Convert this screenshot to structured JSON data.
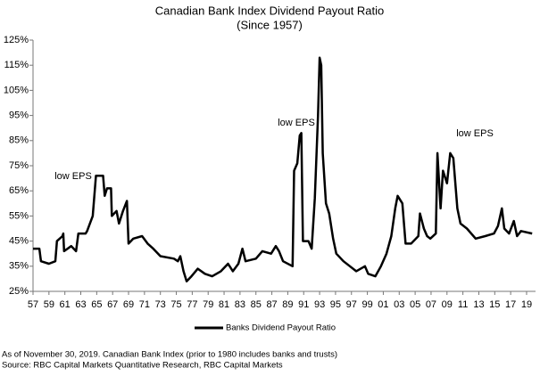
{
  "chart_data": {
    "type": "line",
    "title": "Canadian Bank Index Dividend Payout Ratio",
    "subtitle": "(Since 1957)",
    "annotations": [
      "low EPS",
      "low EPS",
      "low EPS"
    ],
    "footnotes": [
      "As of November 30, 2019. Canadian Bank Index (prior to 1980 includes banks and trusts)",
      "Source: RBC Capital Markets Quantitative Research, RBC Capital Markets"
    ],
    "x": [
      1957.0,
      1957.8,
      1958.0,
      1959.0,
      1959.8,
      1960.0,
      1960.7,
      1960.8,
      1960.9,
      1961.8,
      1962.4,
      1962.7,
      1963.6,
      1963.8,
      1964.5,
      1964.9,
      1965.8,
      1966.0,
      1966.3,
      1966.8,
      1966.9,
      1967.5,
      1967.8,
      1968.3,
      1968.8,
      1969.0,
      1969.6,
      1970.7,
      1971.4,
      1972.1,
      1973.0,
      1974.7,
      1975.2,
      1975.5,
      1975.9,
      1976.3,
      1976.9,
      1977.7,
      1978.6,
      1979.5,
      1980.6,
      1981.5,
      1982.1,
      1982.8,
      1983.3,
      1983.7,
      1985.0,
      1985.8,
      1986.9,
      1987.5,
      1987.9,
      1988.4,
      1989.6,
      1989.8,
      1990.2,
      1990.5,
      1990.7,
      1990.9,
      1991.6,
      1992.0,
      1992.4,
      1992.8,
      1993.0,
      1993.2,
      1993.4,
      1993.8,
      1994.2,
      1994.7,
      1995.1,
      1996.0,
      1996.8,
      1997.6,
      1998.7,
      1999.1,
      2000.0,
      2000.7,
      2001.4,
      2002.0,
      2002.5,
      2002.8,
      2003.4,
      2003.8,
      2004.5,
      2005.4,
      2005.6,
      2006.1,
      2006.5,
      2006.9,
      2007.6,
      2007.8,
      2008.2,
      2008.5,
      2009.0,
      2009.4,
      2009.8,
      2010.3,
      2010.7,
      2011.5,
      2012.6,
      2013.8,
      2014.9,
      2015.4,
      2015.9,
      2016.2,
      2016.8,
      2017.4,
      2017.8,
      2018.3,
      2019.7
    ],
    "series": [
      {
        "name": "Banks Dividend Payout Ratio",
        "color": "#000000",
        "values": [
          42,
          42,
          37,
          36,
          37,
          45,
          47,
          48,
          41,
          43,
          41,
          48,
          48,
          49,
          55,
          71,
          71,
          63,
          66,
          66,
          55,
          57,
          52,
          57,
          61,
          44,
          46,
          47,
          44,
          42,
          39,
          38,
          37,
          39,
          33,
          29,
          31,
          34,
          32,
          31,
          33,
          36,
          33,
          36,
          42,
          37,
          38,
          41,
          40,
          43,
          41,
          37,
          35,
          73,
          76,
          87,
          88,
          45,
          45,
          42,
          62,
          95,
          118,
          115,
          80,
          60,
          56,
          46,
          40,
          37,
          35,
          33,
          35,
          32,
          31,
          35,
          40,
          47,
          58,
          63,
          60,
          44,
          44,
          47,
          56,
          50,
          47,
          46,
          48,
          80,
          58,
          73,
          68,
          80,
          78,
          58,
          52,
          50,
          46,
          47,
          48,
          51,
          58,
          50,
          48,
          53,
          47,
          49,
          48
        ]
      }
    ],
    "xlim": [
      1957,
      2019.9
    ],
    "xticks": [
      {
        "value": 1957,
        "label": "57"
      },
      {
        "value": 1959,
        "label": "59"
      },
      {
        "value": 1961,
        "label": "61"
      },
      {
        "value": 1963,
        "label": "63"
      },
      {
        "value": 1965,
        "label": "65"
      },
      {
        "value": 1967,
        "label": "67"
      },
      {
        "value": 1969,
        "label": "69"
      },
      {
        "value": 1971,
        "label": "71"
      },
      {
        "value": 1973,
        "label": "73"
      },
      {
        "value": 1975,
        "label": "75"
      },
      {
        "value": 1977,
        "label": "77"
      },
      {
        "value": 1979,
        "label": "79"
      },
      {
        "value": 1981,
        "label": "81"
      },
      {
        "value": 1983,
        "label": "83"
      },
      {
        "value": 1985,
        "label": "85"
      },
      {
        "value": 1987,
        "label": "87"
      },
      {
        "value": 1989,
        "label": "89"
      },
      {
        "value": 1991,
        "label": "91"
      },
      {
        "value": 1993,
        "label": "93"
      },
      {
        "value": 1995,
        "label": "95"
      },
      {
        "value": 1997,
        "label": "97"
      },
      {
        "value": 1999,
        "label": "99"
      },
      {
        "value": 2001,
        "label": "01"
      },
      {
        "value": 2003,
        "label": "03"
      },
      {
        "value": 2005,
        "label": "05"
      },
      {
        "value": 2007,
        "label": "07"
      },
      {
        "value": 2009,
        "label": "09"
      },
      {
        "value": 2011,
        "label": "11"
      },
      {
        "value": 2013,
        "label": "13"
      },
      {
        "value": 2015,
        "label": "15"
      },
      {
        "value": 2017,
        "label": "17"
      },
      {
        "value": 2019,
        "label": "19"
      }
    ],
    "ylim": [
      25,
      125
    ],
    "yticks": [
      {
        "value": 25,
        "label": "25%"
      },
      {
        "value": 35,
        "label": "35%"
      },
      {
        "value": 45,
        "label": "45%"
      },
      {
        "value": 55,
        "label": "55%"
      },
      {
        "value": 65,
        "label": "65%"
      },
      {
        "value": 75,
        "label": "75%"
      },
      {
        "value": 85,
        "label": "85%"
      },
      {
        "value": 95,
        "label": "95%"
      },
      {
        "value": 105,
        "label": "105%"
      },
      {
        "value": 115,
        "label": "115%"
      },
      {
        "value": 125,
        "label": "125%"
      }
    ],
    "grid": false,
    "legend": "bottom"
  }
}
